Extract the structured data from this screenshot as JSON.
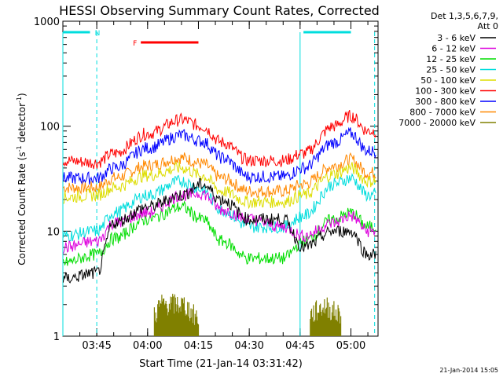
{
  "chart_data": {
    "type": "line",
    "title": "HESSI Observing Summary Count Rates, Corrected",
    "xlabel": "Start Time (21-Jan-14 03:31:42)",
    "ylabel_main": "Corrected Count Rate (s",
    "ylabel_sup1": "-1",
    "ylabel_mid": " detector",
    "ylabel_sup2": "-1",
    "ylabel_end": ")",
    "yscale": "log",
    "ylim": [
      1,
      1000
    ],
    "xlim_minutes": [
      215,
      308
    ],
    "x_ticks": [
      {
        "label": "03:45",
        "min": 225
      },
      {
        "label": "04:00",
        "min": 240
      },
      {
        "label": "04:15",
        "min": 255
      },
      {
        "label": "04:30",
        "min": 270
      },
      {
        "label": "04:45",
        "min": 285
      },
      {
        "label": "05:00",
        "min": 300
      }
    ],
    "y_ticks": [
      {
        "label": "1",
        "v": 1
      },
      {
        "label": "10",
        "v": 10
      },
      {
        "label": "100",
        "v": 100
      },
      {
        "label": "1000",
        "v": 1000
      }
    ],
    "legend_header_1": "Det 1,3,5,6,7,9,",
    "legend_header_2": "Att 0",
    "legend_position": "right",
    "series": [
      {
        "name": "3 - 6 keV",
        "color": "#000000",
        "kp": [
          [
            215,
            3.5
          ],
          [
            225,
            4
          ],
          [
            230,
            12
          ],
          [
            240,
            17
          ],
          [
            250,
            22
          ],
          [
            256,
            28
          ],
          [
            262,
            20
          ],
          [
            270,
            13
          ],
          [
            280,
            13
          ],
          [
            286,
            7
          ],
          [
            295,
            10
          ],
          [
            300,
            10
          ],
          [
            305,
            6
          ]
        ]
      },
      {
        "name": "6 - 12 keV",
        "color": "#dd00dd",
        "kp": [
          [
            215,
            7
          ],
          [
            225,
            8
          ],
          [
            230,
            12
          ],
          [
            240,
            15
          ],
          [
            250,
            22
          ],
          [
            256,
            23
          ],
          [
            262,
            16
          ],
          [
            270,
            13
          ],
          [
            280,
            11
          ],
          [
            286,
            9
          ],
          [
            295,
            12
          ],
          [
            300,
            14
          ],
          [
            305,
            10
          ]
        ]
      },
      {
        "name": "12 - 25 keV",
        "color": "#00dd00",
        "kp": [
          [
            215,
            5
          ],
          [
            225,
            6
          ],
          [
            230,
            8.5
          ],
          [
            240,
            13
          ],
          [
            250,
            17
          ],
          [
            256,
            13
          ],
          [
            262,
            8
          ],
          [
            270,
            5.5
          ],
          [
            280,
            5.5
          ],
          [
            286,
            8
          ],
          [
            295,
            13
          ],
          [
            300,
            15
          ],
          [
            305,
            11
          ]
        ]
      },
      {
        "name": "25 - 50 keV",
        "color": "#00dddd",
        "kp": [
          [
            215,
            9
          ],
          [
            225,
            10
          ],
          [
            230,
            15
          ],
          [
            240,
            22
          ],
          [
            250,
            30
          ],
          [
            256,
            25
          ],
          [
            262,
            16
          ],
          [
            270,
            11
          ],
          [
            280,
            11
          ],
          [
            286,
            14
          ],
          [
            295,
            28
          ],
          [
            300,
            32
          ],
          [
            305,
            22
          ]
        ]
      },
      {
        "name": "50 - 100 keV",
        "color": "#dddd00",
        "kp": [
          [
            215,
            21
          ],
          [
            225,
            22
          ],
          [
            230,
            26
          ],
          [
            240,
            34
          ],
          [
            250,
            40
          ],
          [
            256,
            34
          ],
          [
            262,
            24
          ],
          [
            270,
            19
          ],
          [
            280,
            19
          ],
          [
            286,
            22
          ],
          [
            295,
            35
          ],
          [
            300,
            40
          ],
          [
            305,
            30
          ]
        ]
      },
      {
        "name": "100 - 300 keV",
        "color": "#ff0000",
        "kp": [
          [
            215,
            47
          ],
          [
            225,
            45
          ],
          [
            230,
            55
          ],
          [
            240,
            85
          ],
          [
            250,
            115
          ],
          [
            256,
            100
          ],
          [
            262,
            70
          ],
          [
            270,
            47
          ],
          [
            280,
            47
          ],
          [
            286,
            55
          ],
          [
            295,
            100
          ],
          [
            300,
            125
          ],
          [
            305,
            90
          ]
        ]
      },
      {
        "name": "300 - 800 keV",
        "color": "#0000ff",
        "kp": [
          [
            215,
            32
          ],
          [
            225,
            32
          ],
          [
            230,
            40
          ],
          [
            240,
            62
          ],
          [
            250,
            82
          ],
          [
            256,
            72
          ],
          [
            262,
            50
          ],
          [
            270,
            33
          ],
          [
            280,
            33
          ],
          [
            286,
            40
          ],
          [
            295,
            70
          ],
          [
            300,
            85
          ],
          [
            305,
            58
          ]
        ]
      },
      {
        "name": "800 - 7000 keV",
        "color": "#ff8800",
        "kp": [
          [
            215,
            26
          ],
          [
            225,
            26
          ],
          [
            230,
            32
          ],
          [
            240,
            42
          ],
          [
            250,
            50
          ],
          [
            256,
            44
          ],
          [
            262,
            32
          ],
          [
            270,
            24
          ],
          [
            280,
            24
          ],
          [
            286,
            28
          ],
          [
            295,
            42
          ],
          [
            300,
            48
          ],
          [
            305,
            36
          ]
        ]
      },
      {
        "name": "7000 - 20000 keV",
        "color": "#808000",
        "kp": [
          [
            242,
            1.6
          ],
          [
            244,
            2
          ],
          [
            250,
            2
          ],
          [
            255,
            1.5
          ],
          [
            288,
            1.6
          ],
          [
            292,
            1.9
          ],
          [
            297,
            1.6
          ]
        ]
      }
    ],
    "bursts_7000": [
      {
        "from": 242,
        "to": 255
      },
      {
        "from": 288,
        "to": 297
      }
    ],
    "flag_bars": [
      {
        "label": "",
        "color": "#00dddd",
        "from": 215,
        "to": 223,
        "y": 1000
      },
      {
        "label": "N",
        "color": "#00dddd",
        "from": 223.5,
        "to": 223.5,
        "y": 1000
      },
      {
        "label": "",
        "color": "#00dddd",
        "from": 286,
        "to": 300,
        "y": 1000
      },
      {
        "label": "F",
        "color": "#ff0000",
        "from": 238,
        "to": 255,
        "y": 800
      }
    ],
    "night_lines": [
      215,
      225,
      285,
      307
    ]
  },
  "footer": {
    "date_stamp": "21-Jan-2014 15:05"
  }
}
